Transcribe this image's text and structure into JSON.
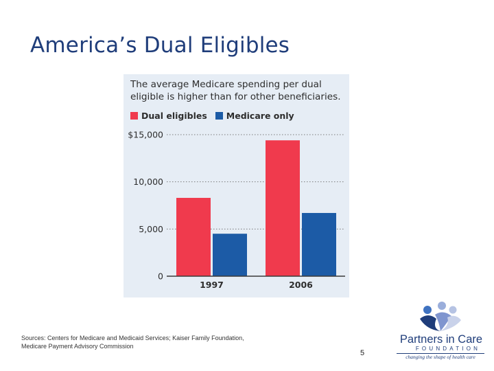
{
  "slide": {
    "title": "America’s Dual Eligibles",
    "page_number": "5",
    "sources": [
      "Sources:  Centers for Medicare and Medicaid Services; Kaiser Family Foundation,",
      "Medicare Payment Advisory Commission"
    ]
  },
  "logo": {
    "name": "Partners in Care",
    "foundation": "FOUNDATION",
    "tagline": "changing the shape of health care"
  },
  "colors": {
    "dual": "#f03a4d",
    "medicare": "#1c5ba6",
    "panel": "#e6edf5",
    "title": "#1f3d7a"
  },
  "chart_data": {
    "type": "bar",
    "title": "The average Medicare spending per dual eligible is higher than for other beneficiaries.",
    "categories": [
      "1997",
      "2006"
    ],
    "series": [
      {
        "name": "Dual eligibles",
        "values": [
          8300,
          14400
        ]
      },
      {
        "name": "Medicare only",
        "values": [
          4500,
          6700
        ]
      }
    ],
    "ylim": [
      0,
      15000
    ],
    "yticks": [
      0,
      5000,
      10000,
      15000
    ],
    "ytick_labels": [
      "0",
      "5,000",
      "10,000",
      "$15,000"
    ],
    "xlabel": "",
    "ylabel": "",
    "legend": "top-left",
    "grid": "dotted horizontal"
  }
}
